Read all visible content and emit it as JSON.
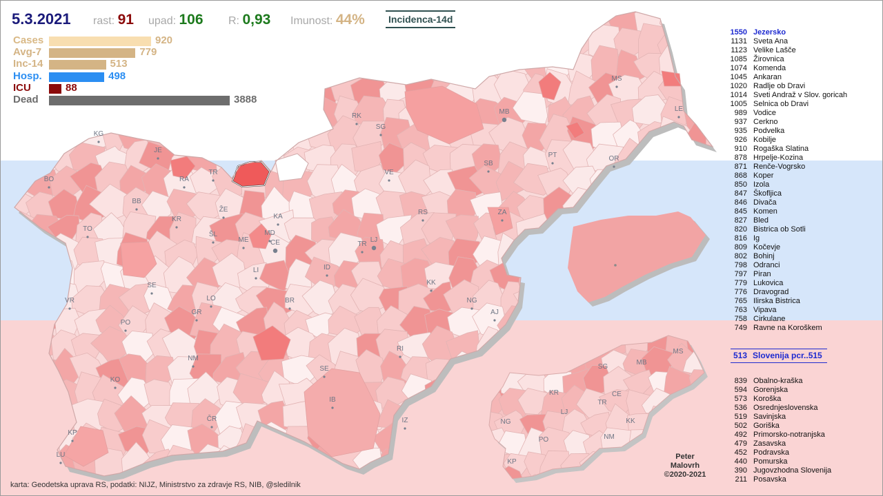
{
  "header": {
    "date": "5.3.2021",
    "rast_label": "rast:",
    "rast_value": "91",
    "upad_label": "upad:",
    "upad_value": "106",
    "r_label": "R:",
    "r_value": "0,93",
    "imunost_label": "Imunost:",
    "imunost_value": "44%",
    "incidence_button": "Incidenca-14d"
  },
  "stats": [
    {
      "label": "Cases",
      "value": "920",
      "amount": 920,
      "color": "#f8deb0"
    },
    {
      "label": "Avg-7",
      "value": "779",
      "amount": 779,
      "color": "#d4b485"
    },
    {
      "label": "Inc-14",
      "value": "513",
      "amount": 513,
      "color": "#d4b485"
    },
    {
      "label": "Hosp.",
      "value": "498",
      "amount": 498,
      "color": "#2b8ef2"
    },
    {
      "label": "ICU",
      "value": "88",
      "amount": 88,
      "color": "#8b0a0a"
    },
    {
      "label": "Dead",
      "value": "3888",
      "amount": 3888,
      "color": "#6d6d6d"
    }
  ],
  "ranking": [
    {
      "value": "1550",
      "name": "Jezersko"
    },
    {
      "value": "1131",
      "name": "Sveta Ana"
    },
    {
      "value": "1123",
      "name": "Velike Lašče"
    },
    {
      "value": "1085",
      "name": "Žirovnica"
    },
    {
      "value": "1074",
      "name": "Komenda"
    },
    {
      "value": "1045",
      "name": "Ankaran"
    },
    {
      "value": "1020",
      "name": "Radlje ob Dravi"
    },
    {
      "value": "1014",
      "name": "Sveti Andraž v Slov. goricah"
    },
    {
      "value": "1005",
      "name": "Selnica ob Dravi"
    },
    {
      "value": "989",
      "name": "Vodice"
    },
    {
      "value": "937",
      "name": "Cerkno"
    },
    {
      "value": "935",
      "name": "Podvelka"
    },
    {
      "value": "926",
      "name": "Kobilje"
    },
    {
      "value": "910",
      "name": "Rogaška Slatina"
    },
    {
      "value": "878",
      "name": "Hrpelje-Kozina"
    },
    {
      "value": "871",
      "name": "Renče-Vogrsko"
    },
    {
      "value": "868",
      "name": "Koper"
    },
    {
      "value": "850",
      "name": "Izola"
    },
    {
      "value": "847",
      "name": "Škofljica"
    },
    {
      "value": "846",
      "name": "Divača"
    },
    {
      "value": "845",
      "name": "Komen"
    },
    {
      "value": "827",
      "name": "Bled"
    },
    {
      "value": "820",
      "name": "Bistrica ob Sotli"
    },
    {
      "value": "816",
      "name": "Ig"
    },
    {
      "value": "809",
      "name": "Kočevje"
    },
    {
      "value": "802",
      "name": "Bohinj"
    },
    {
      "value": "798",
      "name": "Odranci"
    },
    {
      "value": "797",
      "name": "Piran"
    },
    {
      "value": "779",
      "name": "Lukovica"
    },
    {
      "value": "776",
      "name": "Dravograd"
    },
    {
      "value": "765",
      "name": "Ilirska Bistrica"
    },
    {
      "value": "763",
      "name": "Vipava"
    },
    {
      "value": "758",
      "name": "Cirkulane"
    },
    {
      "value": "749",
      "name": "Ravne na Koroškem"
    }
  ],
  "slovenia": {
    "value": "513",
    "label": "Slovenija pcr..515"
  },
  "regions": [
    {
      "value": "839",
      "name": "Obalno-kraška"
    },
    {
      "value": "594",
      "name": "Gorenjska"
    },
    {
      "value": "573",
      "name": "Koroška"
    },
    {
      "value": "536",
      "name": "Osrednjeslovenska"
    },
    {
      "value": "519",
      "name": "Savinjska"
    },
    {
      "value": "502",
      "name": "Goriška"
    },
    {
      "value": "492",
      "name": "Primorsko-notranjska"
    },
    {
      "value": "479",
      "name": "Zasavska"
    },
    {
      "value": "452",
      "name": "Podravska"
    },
    {
      "value": "440",
      "name": "Pomurska"
    },
    {
      "value": "390",
      "name": "Jugovzhodna Slovenija"
    },
    {
      "value": "211",
      "name": "Posavska"
    }
  ],
  "map_labels": [
    "KG",
    "JE",
    "BO",
    "RA",
    "TR",
    "RK",
    "SG",
    "MB",
    "MS",
    "LE",
    "BB",
    "KR",
    "VE",
    "SB",
    "PT",
    "OR",
    "TO",
    "ŽE",
    "KA",
    "ŠL",
    "ME",
    "MD",
    "CE",
    "RS",
    "ZA",
    "TR",
    "LJ",
    "LI",
    "ID",
    "SE",
    "KK",
    "NG",
    "VR",
    "LO",
    "GR",
    "BR",
    "AJ",
    "PO",
    "NM",
    "RI",
    "SE",
    "KO",
    "IB",
    "ČR",
    "IZ",
    "KP",
    "LU"
  ],
  "mini_map_labels": [
    "MS",
    "SG",
    "MB",
    "KR",
    "CE",
    "TR",
    "LJ",
    "NG",
    "KK",
    "NM",
    "PO",
    "KP"
  ],
  "colors": {
    "map_min": "#fdeeee",
    "map_max": "#f06565",
    "highlight": "#ef5a5a",
    "blue_band": "#d6e6fa",
    "pink_band": "#fad4d4"
  },
  "credit": {
    "line1": "Peter",
    "line2": "Malovrh",
    "line3": "©2020-2021"
  },
  "source": "karta: Geodetska uprava RS,  podatki: NIJZ, Ministrstvo za zdravje RS, NIB, @sledilnik"
}
